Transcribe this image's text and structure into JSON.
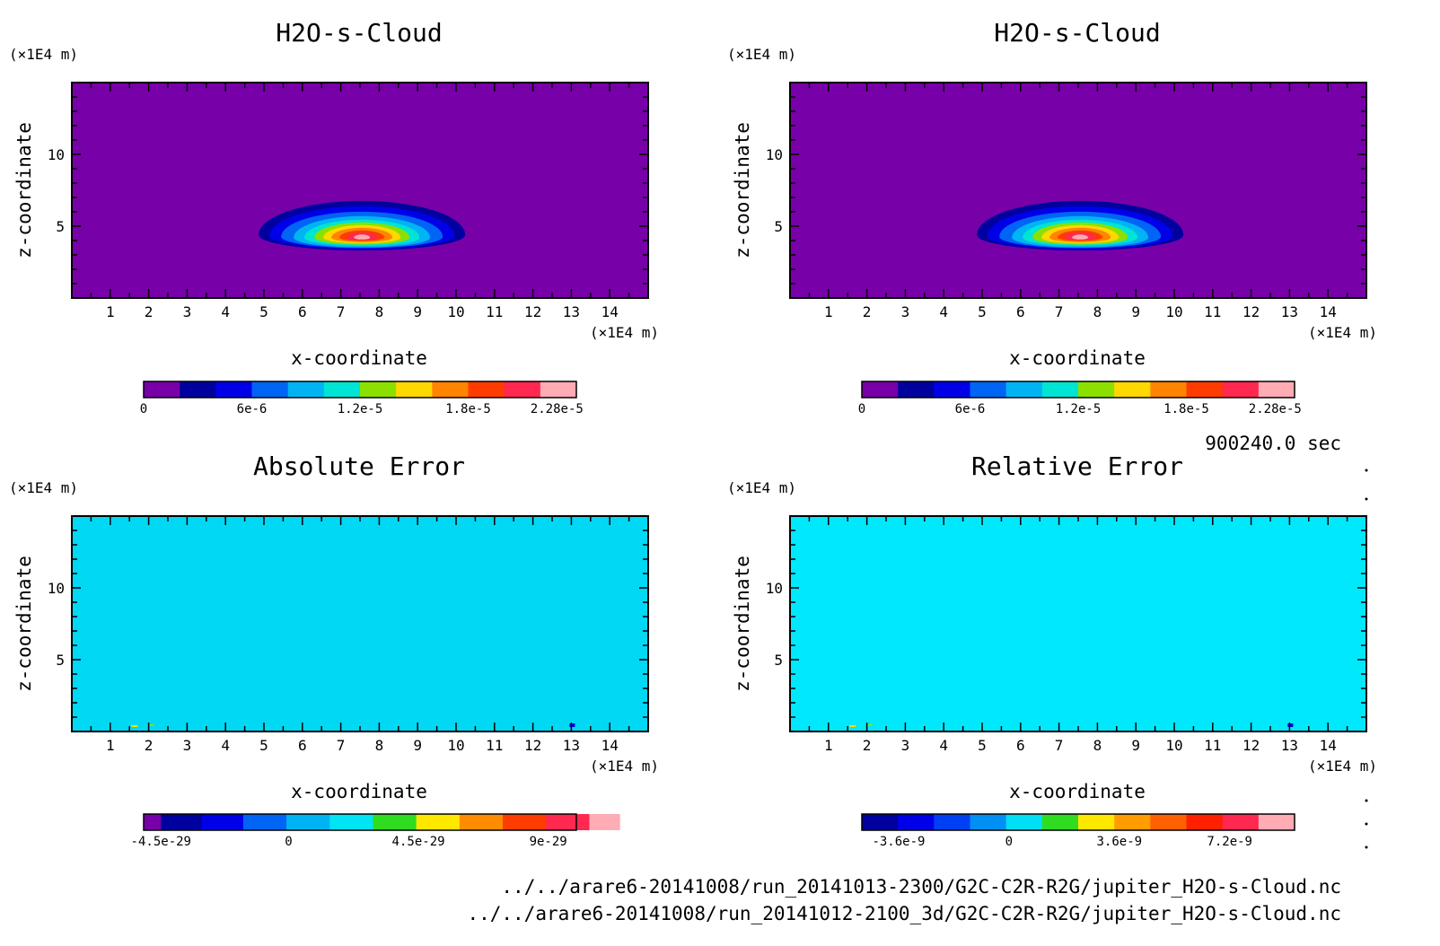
{
  "time_label": "900240.0 sec",
  "files": [
    "../../arare6-20141008/run_20141013-2300/G2C-C2R-R2G/jupiter_H2O-s-Cloud.nc",
    "../../arare6-20141008/run_20141012-2100_3d/G2C-C2R-R2G/jupiter_H2O-s-Cloud.nc"
  ],
  "chart_data": [
    {
      "type": "heatmap",
      "title": "H2O-s-Cloud",
      "xlabel": "x-coordinate",
      "ylabel": "z-coordinate",
      "xunit": "(×1E4 m)",
      "yunit": "(×1E4 m)",
      "xlim": [
        0,
        15
      ],
      "ylim": [
        0,
        15
      ],
      "xticks": [
        "1",
        "2",
        "3",
        "4",
        "5",
        "6",
        "7",
        "8",
        "9",
        "10",
        "11",
        "12",
        "13",
        "14"
      ],
      "yticks": [
        "5",
        "10"
      ],
      "field": "cloud",
      "background": "#7700a8",
      "colorbar": {
        "colors": [
          "#7700a8",
          "#00009f",
          "#0000e8",
          "#0064f4",
          "#00b4f4",
          "#00e4d4",
          "#8ce000",
          "#ffd800",
          "#ff8400",
          "#ff3c00",
          "#ff2850",
          "#ffacb4"
        ],
        "labels": [
          "0",
          "6e-6",
          "1.2e-5",
          "1.8e-5",
          "2.28e-5"
        ],
        "label_positions": [
          0,
          0.25,
          0.5,
          0.75,
          0.955
        ]
      }
    },
    {
      "type": "heatmap",
      "title": "H2O-s-Cloud",
      "xlabel": "x-coordinate",
      "ylabel": "z-coordinate",
      "xunit": "(×1E4 m)",
      "yunit": "(×1E4 m)",
      "xlim": [
        0,
        15
      ],
      "ylim": [
        0,
        15
      ],
      "xticks": [
        "1",
        "2",
        "3",
        "4",
        "5",
        "6",
        "7",
        "8",
        "9",
        "10",
        "11",
        "12",
        "13",
        "14"
      ],
      "yticks": [
        "5",
        "10"
      ],
      "field": "cloud",
      "background": "#7700a8",
      "colorbar": {
        "colors": [
          "#7700a8",
          "#00009f",
          "#0000e8",
          "#0064f4",
          "#00b4f4",
          "#00e4d4",
          "#8ce000",
          "#ffd800",
          "#ff8400",
          "#ff3c00",
          "#ff2850",
          "#ffacb4"
        ],
        "labels": [
          "0",
          "6e-6",
          "1.2e-5",
          "1.8e-5",
          "2.28e-5"
        ],
        "label_positions": [
          0,
          0.25,
          0.5,
          0.75,
          0.955
        ]
      }
    },
    {
      "type": "heatmap",
      "title": "Absolute Error",
      "xlabel": "x-coordinate",
      "ylabel": "z-coordinate",
      "xunit": "(×1E4 m)",
      "yunit": "(×1E4 m)",
      "xlim": [
        0,
        15
      ],
      "ylim": [
        0,
        15
      ],
      "xticks": [
        "1",
        "2",
        "3",
        "4",
        "5",
        "6",
        "7",
        "8",
        "9",
        "10",
        "11",
        "12",
        "13",
        "14"
      ],
      "yticks": [
        "5",
        "10"
      ],
      "field": "uniform",
      "background": "#00d8f4",
      "colorbar": {
        "colors": [
          "#7700a8",
          "#00009f",
          "#0000e8",
          "#0064f4",
          "#00b4f4",
          "#00e4f4",
          "#30dc20",
          "#ffe800",
          "#ff8c00",
          "#ff3c00",
          "#ff2850",
          "#ffacb4"
        ],
        "widths": [
          0.04,
          0.095,
          0.095,
          0.1,
          0.1,
          0.1,
          0.1,
          0.1,
          0.1,
          0.1,
          0.1,
          0.07
        ],
        "labels": [
          "-4.5e-29",
          "0",
          "4.5e-29",
          "9e-29"
        ],
        "label_positions": [
          0.04,
          0.335,
          0.635,
          0.935
        ]
      }
    },
    {
      "type": "heatmap",
      "title": "Relative Error",
      "xlabel": "x-coordinate",
      "ylabel": "z-coordinate",
      "xunit": "(×1E4 m)",
      "yunit": "(×1E4 m)",
      "xlim": [
        0,
        15
      ],
      "ylim": [
        0,
        15
      ],
      "xticks": [
        "1",
        "2",
        "3",
        "4",
        "5",
        "6",
        "7",
        "8",
        "9",
        "10",
        "11",
        "12",
        "13",
        "14"
      ],
      "yticks": [
        "5",
        "10"
      ],
      "field": "uniform",
      "background": "#00e8fc",
      "colorbar": {
        "colors": [
          "#00009f",
          "#0000e8",
          "#0040f4",
          "#0090f4",
          "#00e0f4",
          "#30dc20",
          "#ffe800",
          "#ff9c00",
          "#ff6000",
          "#ff2000",
          "#ff2850",
          "#ffacb4"
        ],
        "labels": [
          "-3.6e-9",
          "0",
          "3.6e-9",
          "7.2e-9"
        ],
        "label_positions": [
          0.085,
          0.34,
          0.595,
          0.85
        ]
      }
    }
  ]
}
